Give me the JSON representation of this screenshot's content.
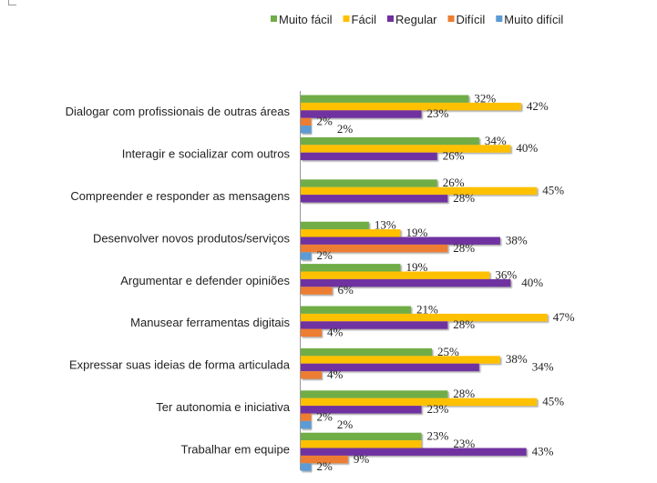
{
  "chart_data": {
    "type": "bar",
    "orientation": "horizontal",
    "title": "",
    "xlabel": "",
    "ylabel": "",
    "xlim": [
      0,
      50
    ],
    "grid": false,
    "legend_position": "top-right",
    "categories": [
      "Dialogar com profissionais de outras áreas",
      "Interagir e socializar com outros",
      "Compreender e responder as mensagens",
      "Desenvolver novos produtos/serviços",
      "Argumentar e defender opiniões",
      "Manusear ferramentas digitais",
      "Expressar suas ideias de forma articulada",
      "Ter autonomia e iniciativa",
      "Trabalhar em equipe"
    ],
    "series": [
      {
        "name": "Muito fácil",
        "color": "#70AD47",
        "values": [
          32,
          34,
          26,
          13,
          19,
          21,
          25,
          28,
          23
        ]
      },
      {
        "name": "Fácil",
        "color": "#FFC000",
        "values": [
          42,
          40,
          45,
          19,
          36,
          47,
          38,
          45,
          23
        ]
      },
      {
        "name": "Regular",
        "color": "#7030A0",
        "values": [
          23,
          26,
          28,
          38,
          40,
          28,
          34,
          23,
          43
        ]
      },
      {
        "name": "Difícil",
        "color": "#ED7D31",
        "values": [
          2,
          null,
          null,
          28,
          6,
          4,
          4,
          2,
          9
        ]
      },
      {
        "name": "Muito difícil",
        "color": "#5B9BD5",
        "values": [
          2,
          null,
          null,
          2,
          null,
          null,
          null,
          2,
          2
        ]
      }
    ],
    "value_suffix": "%"
  }
}
